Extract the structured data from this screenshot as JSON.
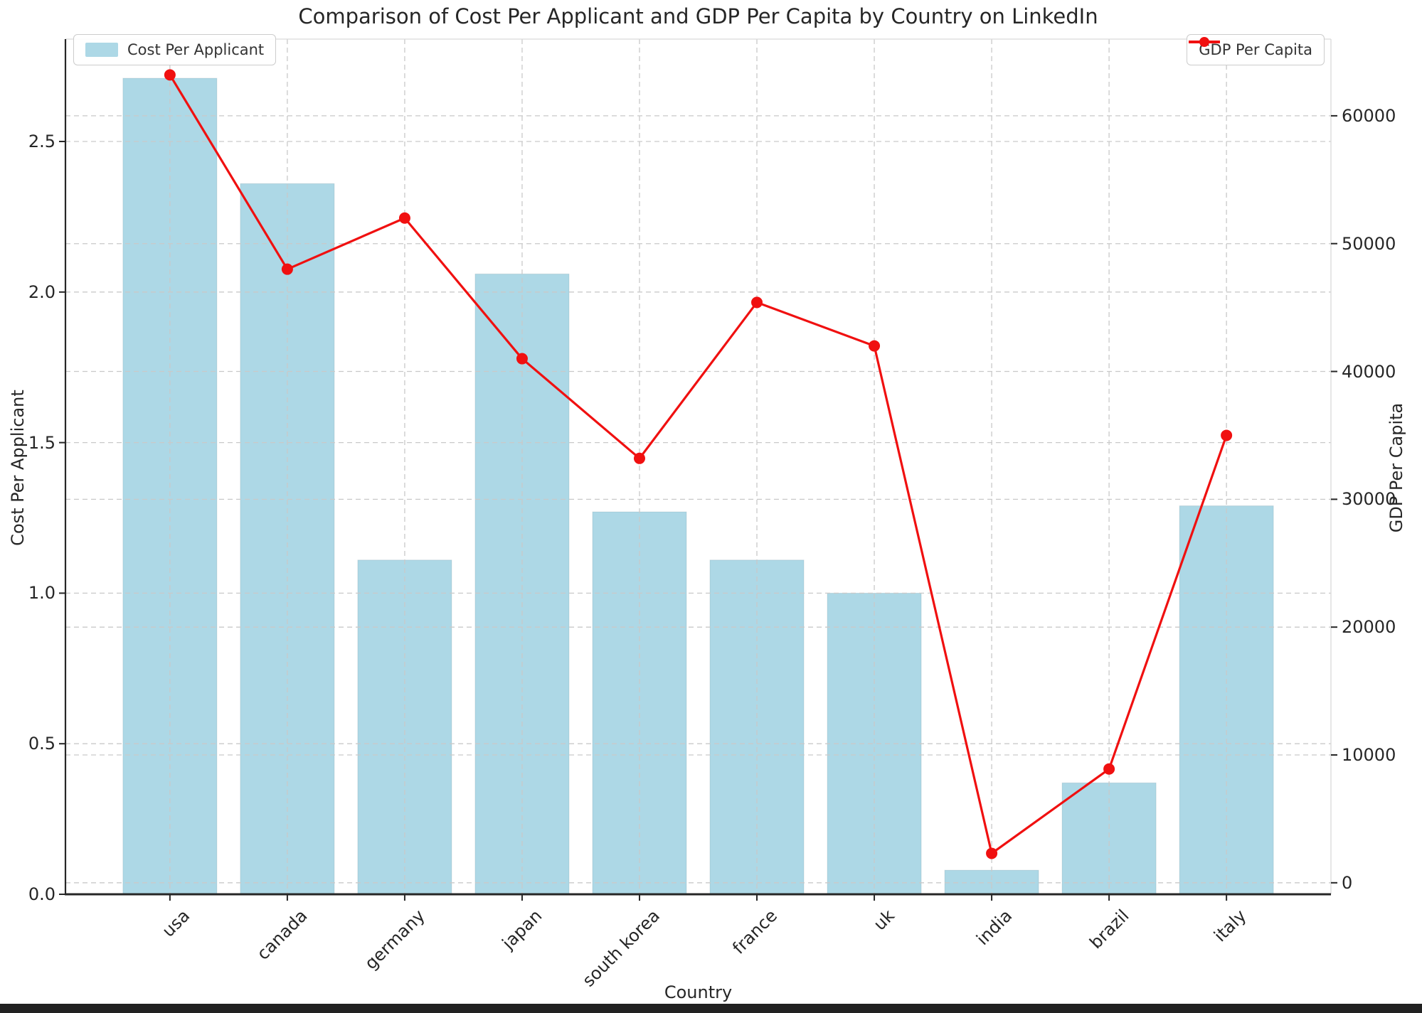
{
  "title": "Comparison of Cost Per Applicant and GDP Per Capita by Country on LinkedIn",
  "chart_data": {
    "type": "bar",
    "categories": [
      "usa",
      "canada",
      "germany",
      "japan",
      "south korea",
      "france",
      "uk",
      "india",
      "brazil",
      "italy"
    ],
    "series": [
      {
        "name": "Cost Per Applicant",
        "type": "bar",
        "axis": "left",
        "color": "#ADD8E6",
        "values": [
          2.71,
          2.36,
          1.11,
          2.06,
          1.27,
          1.11,
          1.0,
          0.08,
          0.37,
          1.29
        ]
      },
      {
        "name": "GDP Per Capita",
        "type": "line",
        "axis": "right",
        "color": "#f01010",
        "values": [
          63200,
          48000,
          52000,
          41000,
          33200,
          45400,
          42000,
          2300,
          8900,
          35000
        ]
      }
    ],
    "xlabel": "Country",
    "ylabel_left": "Cost Per Applicant",
    "ylabel_right": "GDP Per Capita",
    "left_tick_labels": [
      "0.0",
      "0.5",
      "1.0",
      "1.5",
      "2.0",
      "2.5"
    ],
    "left_tick_values": [
      0.0,
      0.5,
      1.0,
      1.5,
      2.0,
      2.5
    ],
    "right_tick_labels": [
      "0",
      "10000",
      "20000",
      "30000",
      "40000",
      "50000",
      "60000"
    ],
    "right_tick_values": [
      0,
      10000,
      20000,
      30000,
      40000,
      50000,
      60000
    ],
    "ylim_left": [
      0,
      2.84
    ],
    "ylim_right": [
      -900,
      66000
    ],
    "grid": true,
    "legend_left_label": "Cost Per Applicant",
    "legend_right_label": "GDP Per Capita",
    "grid_color": "#c9c9c9",
    "spine_color": "#262626",
    "light_spine_color": "#d9d9d9"
  }
}
